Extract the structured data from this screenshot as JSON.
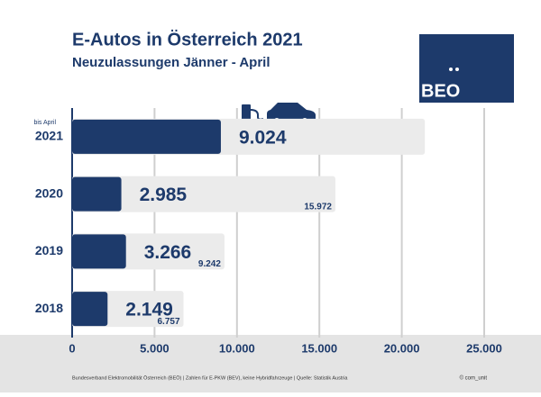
{
  "chart_data": {
    "type": "bar",
    "orientation": "horizontal",
    "title": "E-Autos in Österreich 2021",
    "subtitle": "Neuzulassungen Jänner - April",
    "annotation": "bis April",
    "logo": "BEO",
    "footnote": "Bundesverband Elektromobilität Österreich (BEÖ) | Zahlen für E-PKW (BEV), keine Hybridfahrzeuge | Quelle: Statistik Austria",
    "credit": "© com_unit",
    "categories": [
      "2021",
      "2020",
      "2019",
      "2018"
    ],
    "series": [
      {
        "color": "#ebebeb",
        "values": [
          21400,
          15972,
          9242,
          6757
        ],
        "value_labels": [
          null,
          "15.972",
          "9.242",
          "6.757"
        ]
      },
      {
        "color": "#1d3a6b",
        "values": [
          9024,
          2985,
          3266,
          2149
        ],
        "value_labels": [
          "9.024",
          "2.985",
          "3.266",
          "2.149"
        ]
      }
    ],
    "xlim": [
      0,
      25000
    ],
    "xticks": [
      0,
      {
        "value": 5000,
        "label": "5.000"
      },
      {
        "value": 10000,
        "label": "10.000"
      },
      {
        "value": 15000,
        "label": "15.000"
      },
      {
        "value": 20000,
        "label": "20.000"
      },
      {
        "value": 25000,
        "label": "25.000"
      }
    ],
    "grid": true
  }
}
